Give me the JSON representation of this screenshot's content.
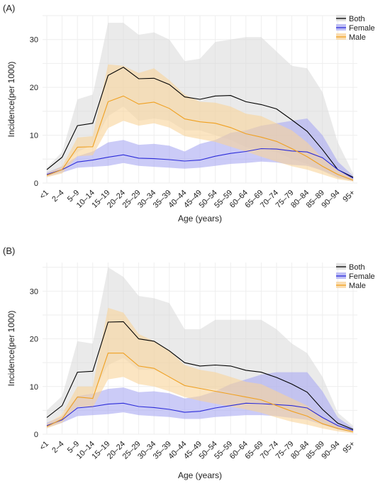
{
  "chart_data": [
    {
      "panel_label": "(A)",
      "type": "area",
      "xlabel": "Age (years)",
      "ylabel": "Incidence(per 1000)",
      "categories": [
        "<1",
        "2–4",
        "5–9",
        "10–14",
        "15–19",
        "20–24",
        "25–29",
        "30–34",
        "35–39",
        "40–44",
        "45–49",
        "50–54",
        "55–59",
        "60–64",
        "65–69",
        "70–74",
        "75–79",
        "80–84",
        "85–89",
        "90–94",
        "95+"
      ],
      "yticks": [
        0,
        10,
        20,
        30
      ],
      "ylim": [
        0,
        35
      ],
      "legend_position": "top-right",
      "grid": true,
      "series": [
        {
          "name": "Both",
          "color": "#000000",
          "fill": "#d9d9d9",
          "values": [
            2.8,
            5.4,
            12.0,
            12.5,
            22.5,
            24.2,
            21.8,
            21.9,
            20.6,
            18.0,
            17.5,
            18.2,
            18.3,
            17.0,
            16.4,
            15.5,
            13.2,
            10.8,
            7.0,
            2.8,
            1.2
          ],
          "lower": [
            1.6,
            3.5,
            6.5,
            8.0,
            14.0,
            16.0,
            13.0,
            13.5,
            13.0,
            11.0,
            11.0,
            10.0,
            9.0,
            7.5,
            7.0,
            6.5,
            5.0,
            4.0,
            2.5,
            1.0,
            0.5
          ],
          "upper": [
            3.2,
            6.5,
            17.5,
            18.5,
            33.5,
            33.5,
            31.0,
            31.5,
            30.0,
            25.5,
            26.0,
            29.5,
            30.0,
            30.5,
            30.5,
            27.5,
            24.5,
            24.0,
            19.0,
            8.5,
            2.0
          ]
        },
        {
          "name": "Female",
          "color": "#2b2bd9",
          "fill": "#a9a9f2",
          "values": [
            1.8,
            2.8,
            4.4,
            4.8,
            5.4,
            5.9,
            5.2,
            5.1,
            4.9,
            4.6,
            4.8,
            5.6,
            6.2,
            6.6,
            7.2,
            7.1,
            6.7,
            6.5,
            5.3,
            2.8,
            1.0
          ],
          "lower": [
            1.4,
            2.2,
            3.2,
            3.4,
            3.6,
            4.2,
            3.6,
            3.4,
            3.2,
            3.0,
            3.2,
            3.6,
            4.0,
            4.2,
            4.5,
            4.3,
            3.8,
            3.6,
            2.6,
            1.2,
            0.4
          ],
          "upper": [
            2.2,
            3.5,
            5.6,
            6.6,
            8.5,
            9.0,
            8.0,
            8.2,
            7.8,
            6.6,
            8.2,
            9.0,
            10.5,
            11.0,
            12.0,
            12.5,
            13.0,
            13.5,
            10.0,
            4.5,
            1.5
          ]
        },
        {
          "name": "Male",
          "color": "#f0a020",
          "fill": "#f8d39a",
          "values": [
            1.6,
            2.8,
            7.5,
            7.6,
            17.0,
            18.2,
            16.5,
            16.9,
            15.6,
            13.4,
            12.8,
            12.5,
            11.6,
            10.3,
            9.6,
            8.7,
            7.2,
            5.5,
            3.5,
            1.8,
            0.6
          ],
          "lower": [
            1.2,
            2.0,
            5.6,
            5.8,
            11.5,
            13.0,
            12.0,
            12.5,
            11.6,
            9.8,
            9.2,
            8.6,
            7.6,
            6.6,
            5.5,
            4.5,
            3.5,
            2.8,
            1.8,
            0.8,
            0.3
          ],
          "upper": [
            2.0,
            3.5,
            9.5,
            9.8,
            24.8,
            24.5,
            23.0,
            24.0,
            21.5,
            18.5,
            17.0,
            16.8,
            16.0,
            14.5,
            14.0,
            12.5,
            11.0,
            8.5,
            5.2,
            2.6,
            1.0
          ]
        }
      ]
    },
    {
      "panel_label": "(B)",
      "type": "area",
      "xlabel": "Age (years)",
      "ylabel": "Incidence(per 1000)",
      "categories": [
        "<1",
        "2–4",
        "5–9",
        "10–14",
        "15–19",
        "20–24",
        "25–29",
        "30–34",
        "35–39",
        "40–44",
        "45–49",
        "50–54",
        "55–59",
        "60–64",
        "65–69",
        "70–74",
        "75–79",
        "80–84",
        "85–89",
        "90–94",
        "95+"
      ],
      "yticks": [
        0,
        10,
        20,
        30
      ],
      "ylim": [
        0,
        36
      ],
      "legend_position": "top-right",
      "grid": true,
      "series": [
        {
          "name": "Both",
          "color": "#000000",
          "fill": "#d9d9d9",
          "values": [
            3.5,
            6.0,
            13.0,
            13.2,
            23.5,
            23.6,
            20.0,
            19.5,
            17.5,
            15.0,
            14.3,
            14.5,
            14.3,
            13.4,
            13.0,
            11.9,
            10.5,
            8.8,
            5.2,
            2.3,
            1.0
          ],
          "lower": [
            2.2,
            4.2,
            7.5,
            8.5,
            14.5,
            16.0,
            13.5,
            13.5,
            12.0,
            10.0,
            9.5,
            9.5,
            9.0,
            7.0,
            6.5,
            6.0,
            5.0,
            4.0,
            2.5,
            1.0,
            0.4
          ],
          "upper": [
            5.0,
            8.0,
            19.5,
            19.0,
            35.0,
            33.0,
            29.0,
            28.5,
            27.5,
            22.0,
            22.0,
            24.0,
            24.0,
            24.0,
            24.0,
            22.0,
            19.0,
            17.0,
            12.0,
            4.5,
            1.8
          ]
        },
        {
          "name": "Female",
          "color": "#2b2bd9",
          "fill": "#a9a9f2",
          "values": [
            1.8,
            3.0,
            5.5,
            5.8,
            6.3,
            6.5,
            5.8,
            5.6,
            5.2,
            4.6,
            4.8,
            5.5,
            6.0,
            6.5,
            6.4,
            6.2,
            6.0,
            5.5,
            3.5,
            1.8,
            0.8
          ],
          "lower": [
            1.4,
            2.4,
            3.8,
            4.0,
            4.2,
            4.6,
            4.0,
            3.8,
            3.6,
            3.2,
            3.2,
            3.6,
            3.8,
            4.0,
            4.0,
            3.8,
            3.4,
            3.0,
            2.0,
            1.0,
            0.4
          ],
          "upper": [
            2.4,
            3.8,
            8.0,
            8.5,
            9.5,
            9.8,
            8.8,
            9.0,
            8.6,
            7.5,
            8.0,
            9.0,
            10.5,
            11.5,
            12.5,
            13.0,
            13.0,
            13.0,
            9.0,
            3.5,
            1.3
          ]
        },
        {
          "name": "Male",
          "color": "#f0a020",
          "fill": "#f8d39a",
          "values": [
            1.6,
            3.2,
            7.8,
            7.5,
            17.0,
            17.0,
            14.3,
            13.8,
            12.0,
            10.2,
            9.6,
            9.0,
            8.4,
            7.8,
            7.2,
            6.0,
            4.8,
            3.8,
            2.2,
            1.2,
            0.5
          ],
          "lower": [
            1.2,
            2.4,
            5.8,
            5.6,
            11.5,
            12.0,
            10.5,
            10.0,
            9.0,
            7.8,
            7.0,
            6.4,
            5.8,
            5.2,
            4.5,
            3.5,
            2.6,
            2.0,
            1.2,
            0.6,
            0.2
          ],
          "upper": [
            2.2,
            4.2,
            10.0,
            10.0,
            26.5,
            25.5,
            21.0,
            19.5,
            17.5,
            14.5,
            13.5,
            13.0,
            12.0,
            11.0,
            10.5,
            9.0,
            7.5,
            6.0,
            3.5,
            1.8,
            0.8
          ]
        }
      ]
    }
  ]
}
